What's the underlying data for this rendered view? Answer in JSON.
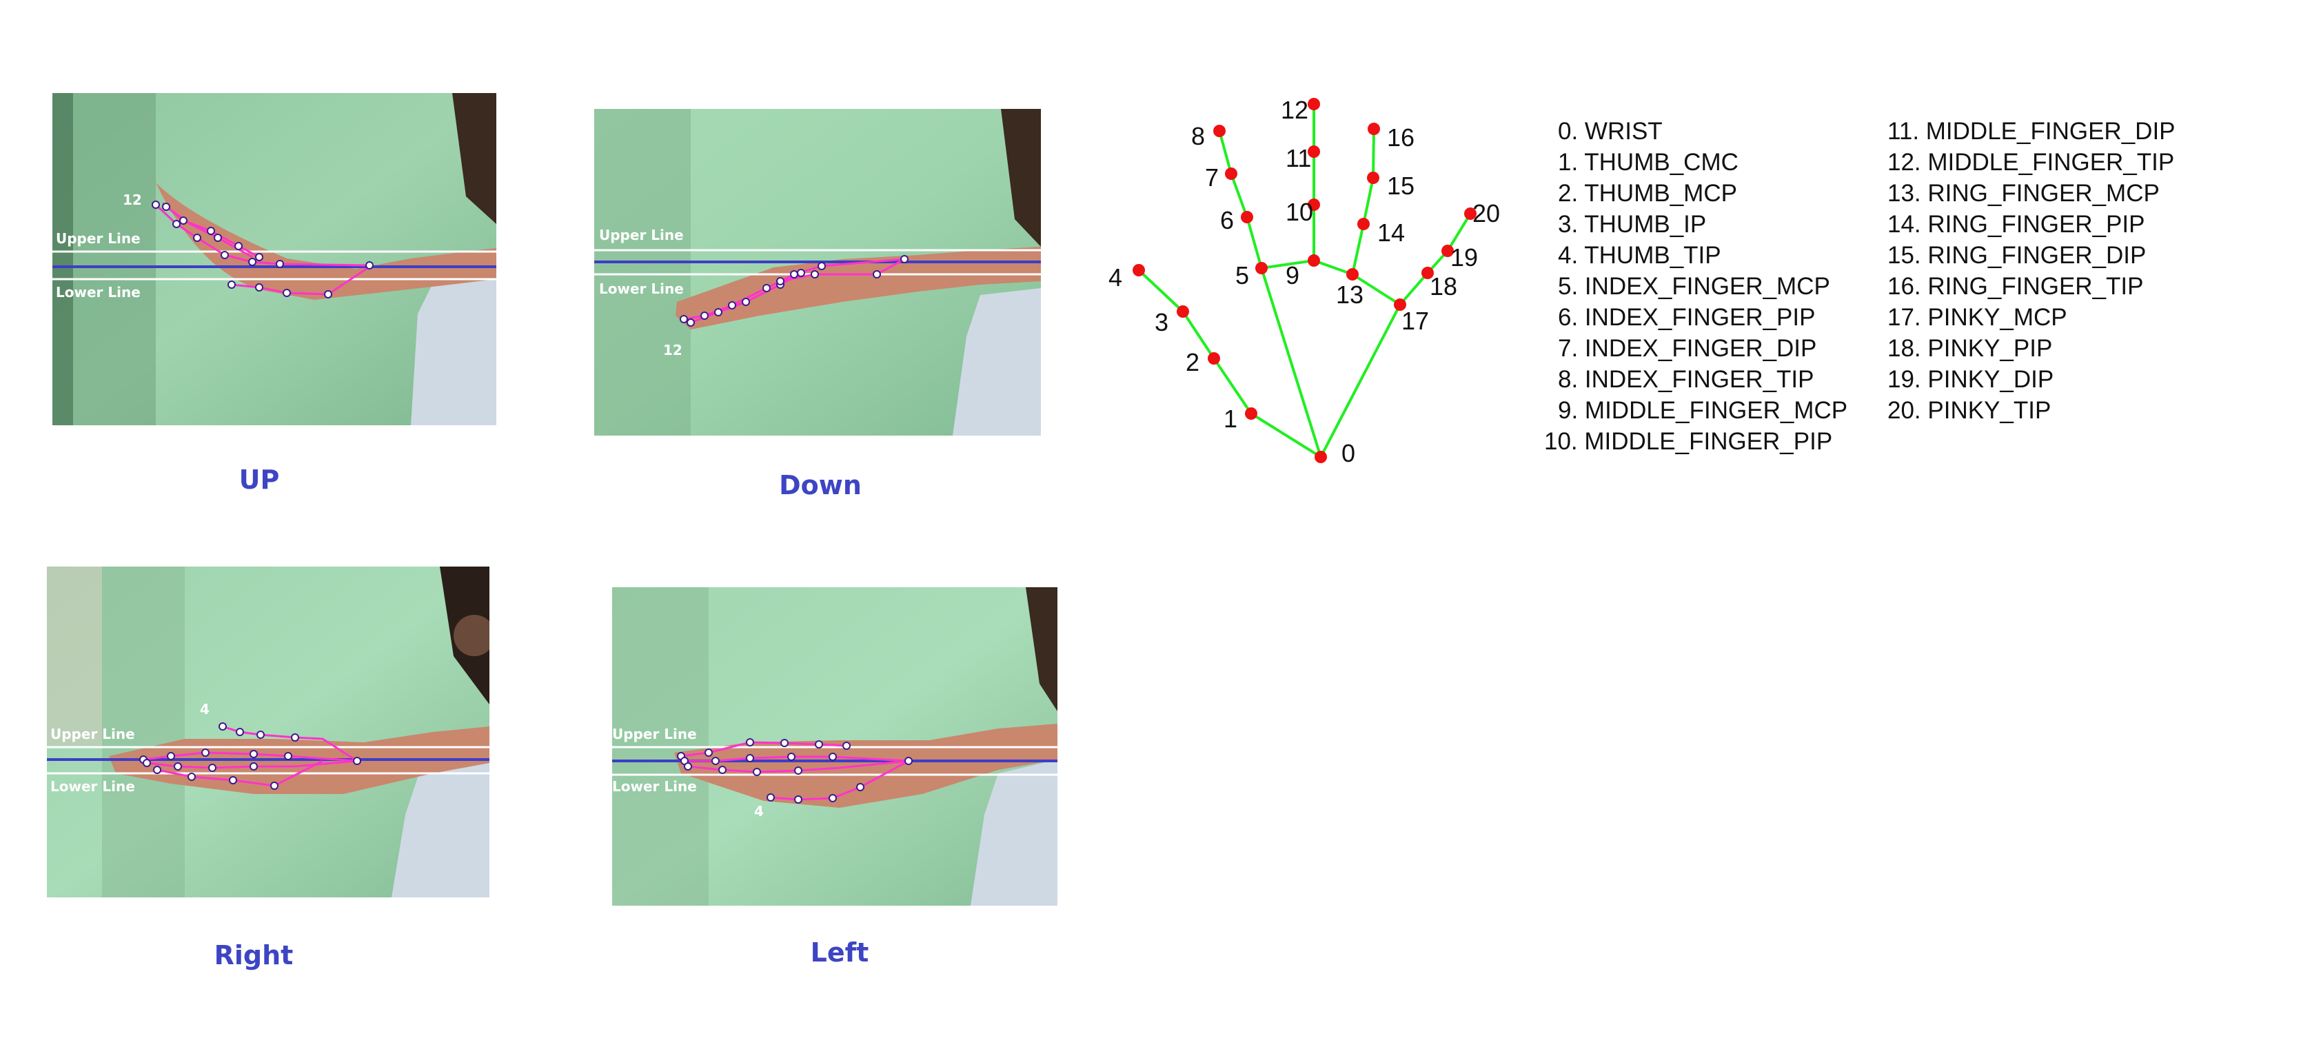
{
  "panels": [
    {
      "id": "up",
      "caption": "UP",
      "upper_line_label": "Upper Line",
      "lower_line_label": "Lower Line",
      "landmark_label": "12"
    },
    {
      "id": "down",
      "caption": "Down",
      "upper_line_label": "Upper Line",
      "lower_line_label": "Lower Line",
      "landmark_label": "12"
    },
    {
      "id": "right",
      "caption": "Right",
      "upper_line_label": "Upper Line",
      "lower_line_label": "Lower Line",
      "landmark_label": "4"
    },
    {
      "id": "left",
      "caption": "Left",
      "upper_line_label": "Upper Line",
      "lower_line_label": "Lower Line",
      "landmark_label": "4"
    }
  ],
  "hand_diagram": {
    "landmark_numbers": [
      "0",
      "1",
      "2",
      "3",
      "4",
      "5",
      "6",
      "7",
      "8",
      "9",
      "10",
      "11",
      "12",
      "13",
      "14",
      "15",
      "16",
      "17",
      "18",
      "19",
      "20"
    ],
    "point_color": "#ee1111",
    "edge_color": "#22ee22"
  },
  "legend": [
    "0. WRIST",
    "1. THUMB_CMC",
    "2. THUMB_MCP",
    "3. THUMB_IP",
    "4. THUMB_TIP",
    "5. INDEX_FINGER_MCP",
    "6. INDEX_FINGER_PIP",
    "7. INDEX_FINGER_DIP",
    "8. INDEX_FINGER_TIP",
    "9. MIDDLE_FINGER_MCP",
    "10. MIDDLE_FINGER_PIP",
    "11. MIDDLE_FINGER_DIP",
    "12. MIDDLE_FINGER_TIP",
    "13. RING_FINGER_MCP",
    "14. RING_FINGER_PIP",
    "15. RING_FINGER_DIP",
    "16. RING_FINGER_TIP",
    "17. PINKY_MCP",
    "18. PINKY_PIP",
    "19. PINKY_DIP",
    "20. PINKY_TIP"
  ]
}
